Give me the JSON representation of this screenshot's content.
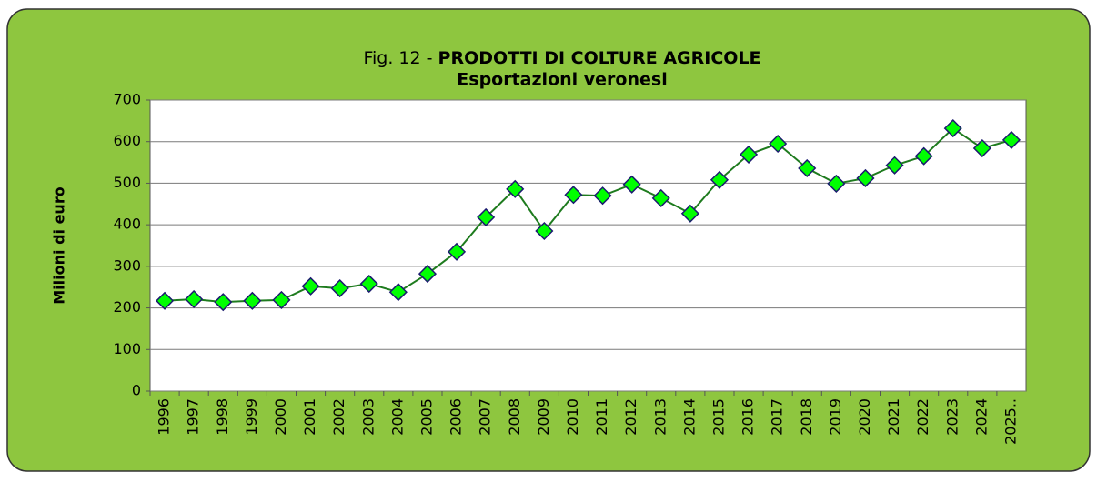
{
  "chart_data": {
    "type": "line",
    "title": {
      "prefix": "Fig. 12 -",
      "main": "PRODOTTI DI COLTURE AGRICOLE"
    },
    "subtitle": "Esportazioni veronesi",
    "y_label": "Milioni di euro",
    "categories": [
      "1996",
      "1997",
      "1998",
      "1999",
      "2000",
      "2001",
      "2002",
      "2003",
      "2004",
      "2005",
      "2006",
      "2007",
      "2008",
      "2009",
      "2010",
      "2011",
      "2012",
      "2013",
      "2014",
      "2015",
      "2016",
      "2017",
      "2018",
      "2019",
      "2020",
      "2021",
      "2022",
      "2023",
      "2024",
      "2025.."
    ],
    "series": [
      {
        "name": "Esportazioni",
        "color": "#1e7b1e",
        "marker_color": "#00ff00",
        "values": [
          217,
          221,
          214,
          217,
          219,
          252,
          247,
          258,
          238,
          282,
          335,
          418,
          486,
          385,
          472,
          470,
          497,
          464,
          427,
          508,
          569,
          595,
          536,
          499,
          512,
          543,
          565,
          632,
          584,
          604
        ]
      }
    ],
    "ylim": [
      0,
      700
    ],
    "yticks": [
      0,
      100,
      200,
      300,
      400,
      500,
      600,
      700
    ],
    "grid": true
  }
}
